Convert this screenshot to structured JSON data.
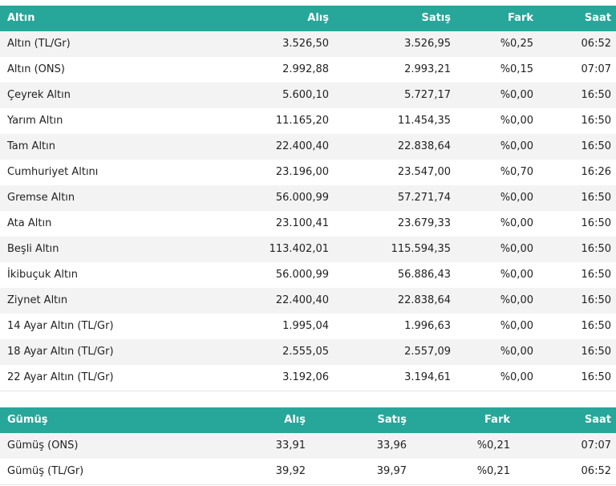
{
  "tables": [
    {
      "headers": [
        "Altın",
        "Alış",
        "Satış",
        "Fark",
        "Saat"
      ],
      "rows": [
        [
          "Altın (TL/Gr)",
          "3.526,50",
          "3.526,95",
          "%0,25",
          "06:52"
        ],
        [
          "Altın (ONS)",
          "2.992,88",
          "2.993,21",
          "%0,15",
          "07:07"
        ],
        [
          "Çeyrek Altın",
          "5.600,10",
          "5.727,17",
          "%0,00",
          "16:50"
        ],
        [
          "Yarım Altın",
          "11.165,20",
          "11.454,35",
          "%0,00",
          "16:50"
        ],
        [
          "Tam Altın",
          "22.400,40",
          "22.838,64",
          "%0,00",
          "16:50"
        ],
        [
          "Cumhuriyet Altını",
          "23.196,00",
          "23.547,00",
          "%0,70",
          "16:26"
        ],
        [
          "Gremse Altın",
          "56.000,99",
          "57.271,74",
          "%0,00",
          "16:50"
        ],
        [
          "Ata Altın",
          "23.100,41",
          "23.679,33",
          "%0,00",
          "16:50"
        ],
        [
          "Beşli Altın",
          "113.402,01",
          "115.594,35",
          "%0,00",
          "16:50"
        ],
        [
          "İkibuçuk Altın",
          "56.000,99",
          "56.886,43",
          "%0,00",
          "16:50"
        ],
        [
          "Ziynet Altın",
          "22.400,40",
          "22.838,64",
          "%0,00",
          "16:50"
        ],
        [
          "14 Ayar Altın (TL/Gr)",
          "1.995,04",
          "1.996,63",
          "%0,00",
          "16:50"
        ],
        [
          "18 Ayar Altın (TL/Gr)",
          "2.555,05",
          "2.557,09",
          "%0,00",
          "16:50"
        ],
        [
          "22 Ayar Altın (TL/Gr)",
          "3.192,06",
          "3.194,61",
          "%0,00",
          "16:50"
        ]
      ]
    },
    {
      "headers": [
        "Gümüş",
        "Alış",
        "Satış",
        "Fark",
        "Saat"
      ],
      "rows": [
        [
          "Gümüş (ONS)",
          "33,91",
          "33,96",
          "%0,21",
          "07:07"
        ],
        [
          "Gümüş (TL/Gr)",
          "39,92",
          "39,97",
          "%0,21",
          "06:52"
        ]
      ]
    }
  ]
}
